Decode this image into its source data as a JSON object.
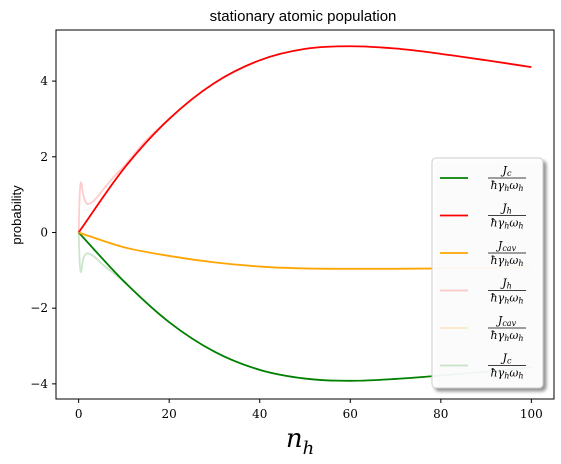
{
  "chart_data": {
    "type": "line",
    "title": "stationary atomic population",
    "xlabel": "n_h",
    "ylabel": "probability",
    "xlim": [
      -5,
      105
    ],
    "ylim": [
      -4.4,
      5.35
    ],
    "xticks": [
      0,
      20,
      40,
      60,
      80,
      100
    ],
    "yticks": [
      -4,
      -2,
      0,
      2,
      4
    ],
    "xtick_labels": [
      "0",
      "20",
      "40",
      "60",
      "80",
      "100"
    ],
    "ytick_labels": [
      "−4",
      "−2",
      "0",
      "2",
      "4"
    ],
    "grid": false,
    "legend_position": "center right",
    "series": [
      {
        "name": "J_c / ħγ_h ω_h",
        "color": "#008000",
        "alpha": 1.0,
        "x": [
          0,
          10,
          20,
          30,
          40,
          50,
          60,
          70,
          80,
          90,
          100
        ],
        "y": [
          0,
          -1.29,
          -2.37,
          -3.15,
          -3.63,
          -3.86,
          -3.92,
          -3.87,
          -3.78,
          -3.68,
          -3.56
        ]
      },
      {
        "name": "J_h / ħγ_h ω_h",
        "color": "#ff0000",
        "alpha": 1.0,
        "x": [
          0,
          10,
          20,
          30,
          40,
          50,
          60,
          70,
          80,
          90,
          100
        ],
        "y": [
          0,
          1.69,
          3.0,
          3.95,
          4.55,
          4.85,
          4.92,
          4.86,
          4.72,
          4.55,
          4.37
        ]
      },
      {
        "name": "J_cav / ħγ_h ω_h",
        "color": "#ffa500",
        "alpha": 1.0,
        "x": [
          0,
          10,
          20,
          30,
          40,
          50,
          60,
          70,
          80,
          90,
          100
        ],
        "y": [
          0,
          -0.39,
          -0.62,
          -0.79,
          -0.9,
          -0.95,
          -0.96,
          -0.96,
          -0.95,
          -0.93,
          -0.91
        ]
      },
      {
        "name": "J_h / ħγ_h ω_h",
        "color": "#ff0000",
        "alpha": 0.2,
        "x": [
          0,
          0.2,
          0.5,
          1,
          1.5,
          2,
          3,
          4,
          6,
          8,
          10,
          15,
          20
        ],
        "y": [
          0,
          0.9,
          1.33,
          1.0,
          0.82,
          0.75,
          0.8,
          0.92,
          1.22,
          1.5,
          1.75,
          2.45,
          3.0
        ]
      },
      {
        "name": "J_cav / ħγ_h ω_h",
        "color": "#ffa500",
        "alpha": 0.2,
        "x": [
          0,
          0.5,
          1,
          2,
          3,
          5
        ],
        "y": [
          0,
          -0.05,
          -0.07,
          -0.09,
          -0.12,
          -0.2
        ]
      },
      {
        "name": "J_c / ħγ_h ω_h",
        "color": "#008000",
        "alpha": 0.2,
        "x": [
          0,
          0.2,
          0.5,
          1,
          1.5,
          2,
          3,
          4,
          6,
          8,
          10,
          15,
          20
        ],
        "y": [
          0,
          -0.7,
          -1.05,
          -0.7,
          -0.58,
          -0.55,
          -0.6,
          -0.7,
          -0.92,
          -1.1,
          -1.3,
          -1.85,
          -2.37
        ]
      }
    ],
    "legend": [
      {
        "num": "J",
        "num_sub": "c",
        "den": "ħγ",
        "den_sub": "h",
        "den2": "ω",
        "den2_sub": "h",
        "color": "#008000",
        "alpha": 1.0
      },
      {
        "num": "J",
        "num_sub": "h",
        "den": "ħγ",
        "den_sub": "h",
        "den2": "ω",
        "den2_sub": "h",
        "color": "#ff0000",
        "alpha": 1.0
      },
      {
        "num": "J",
        "num_sub": "cav",
        "den": "ħγ",
        "den_sub": "h",
        "den2": "ω",
        "den2_sub": "h",
        "color": "#ffa500",
        "alpha": 1.0
      },
      {
        "num": "J",
        "num_sub": "h",
        "den": "ħγ",
        "den_sub": "h",
        "den2": "ω",
        "den2_sub": "h",
        "color": "#ff0000",
        "alpha": 0.2
      },
      {
        "num": "J",
        "num_sub": "cav",
        "den": "ħγ",
        "den_sub": "h",
        "den2": "ω",
        "den2_sub": "h",
        "color": "#ffa500",
        "alpha": 0.2
      },
      {
        "num": "J",
        "num_sub": "c",
        "den": "ħγ",
        "den_sub": "h",
        "den2": "ω",
        "den2_sub": "h",
        "color": "#008000",
        "alpha": 0.2
      }
    ]
  }
}
